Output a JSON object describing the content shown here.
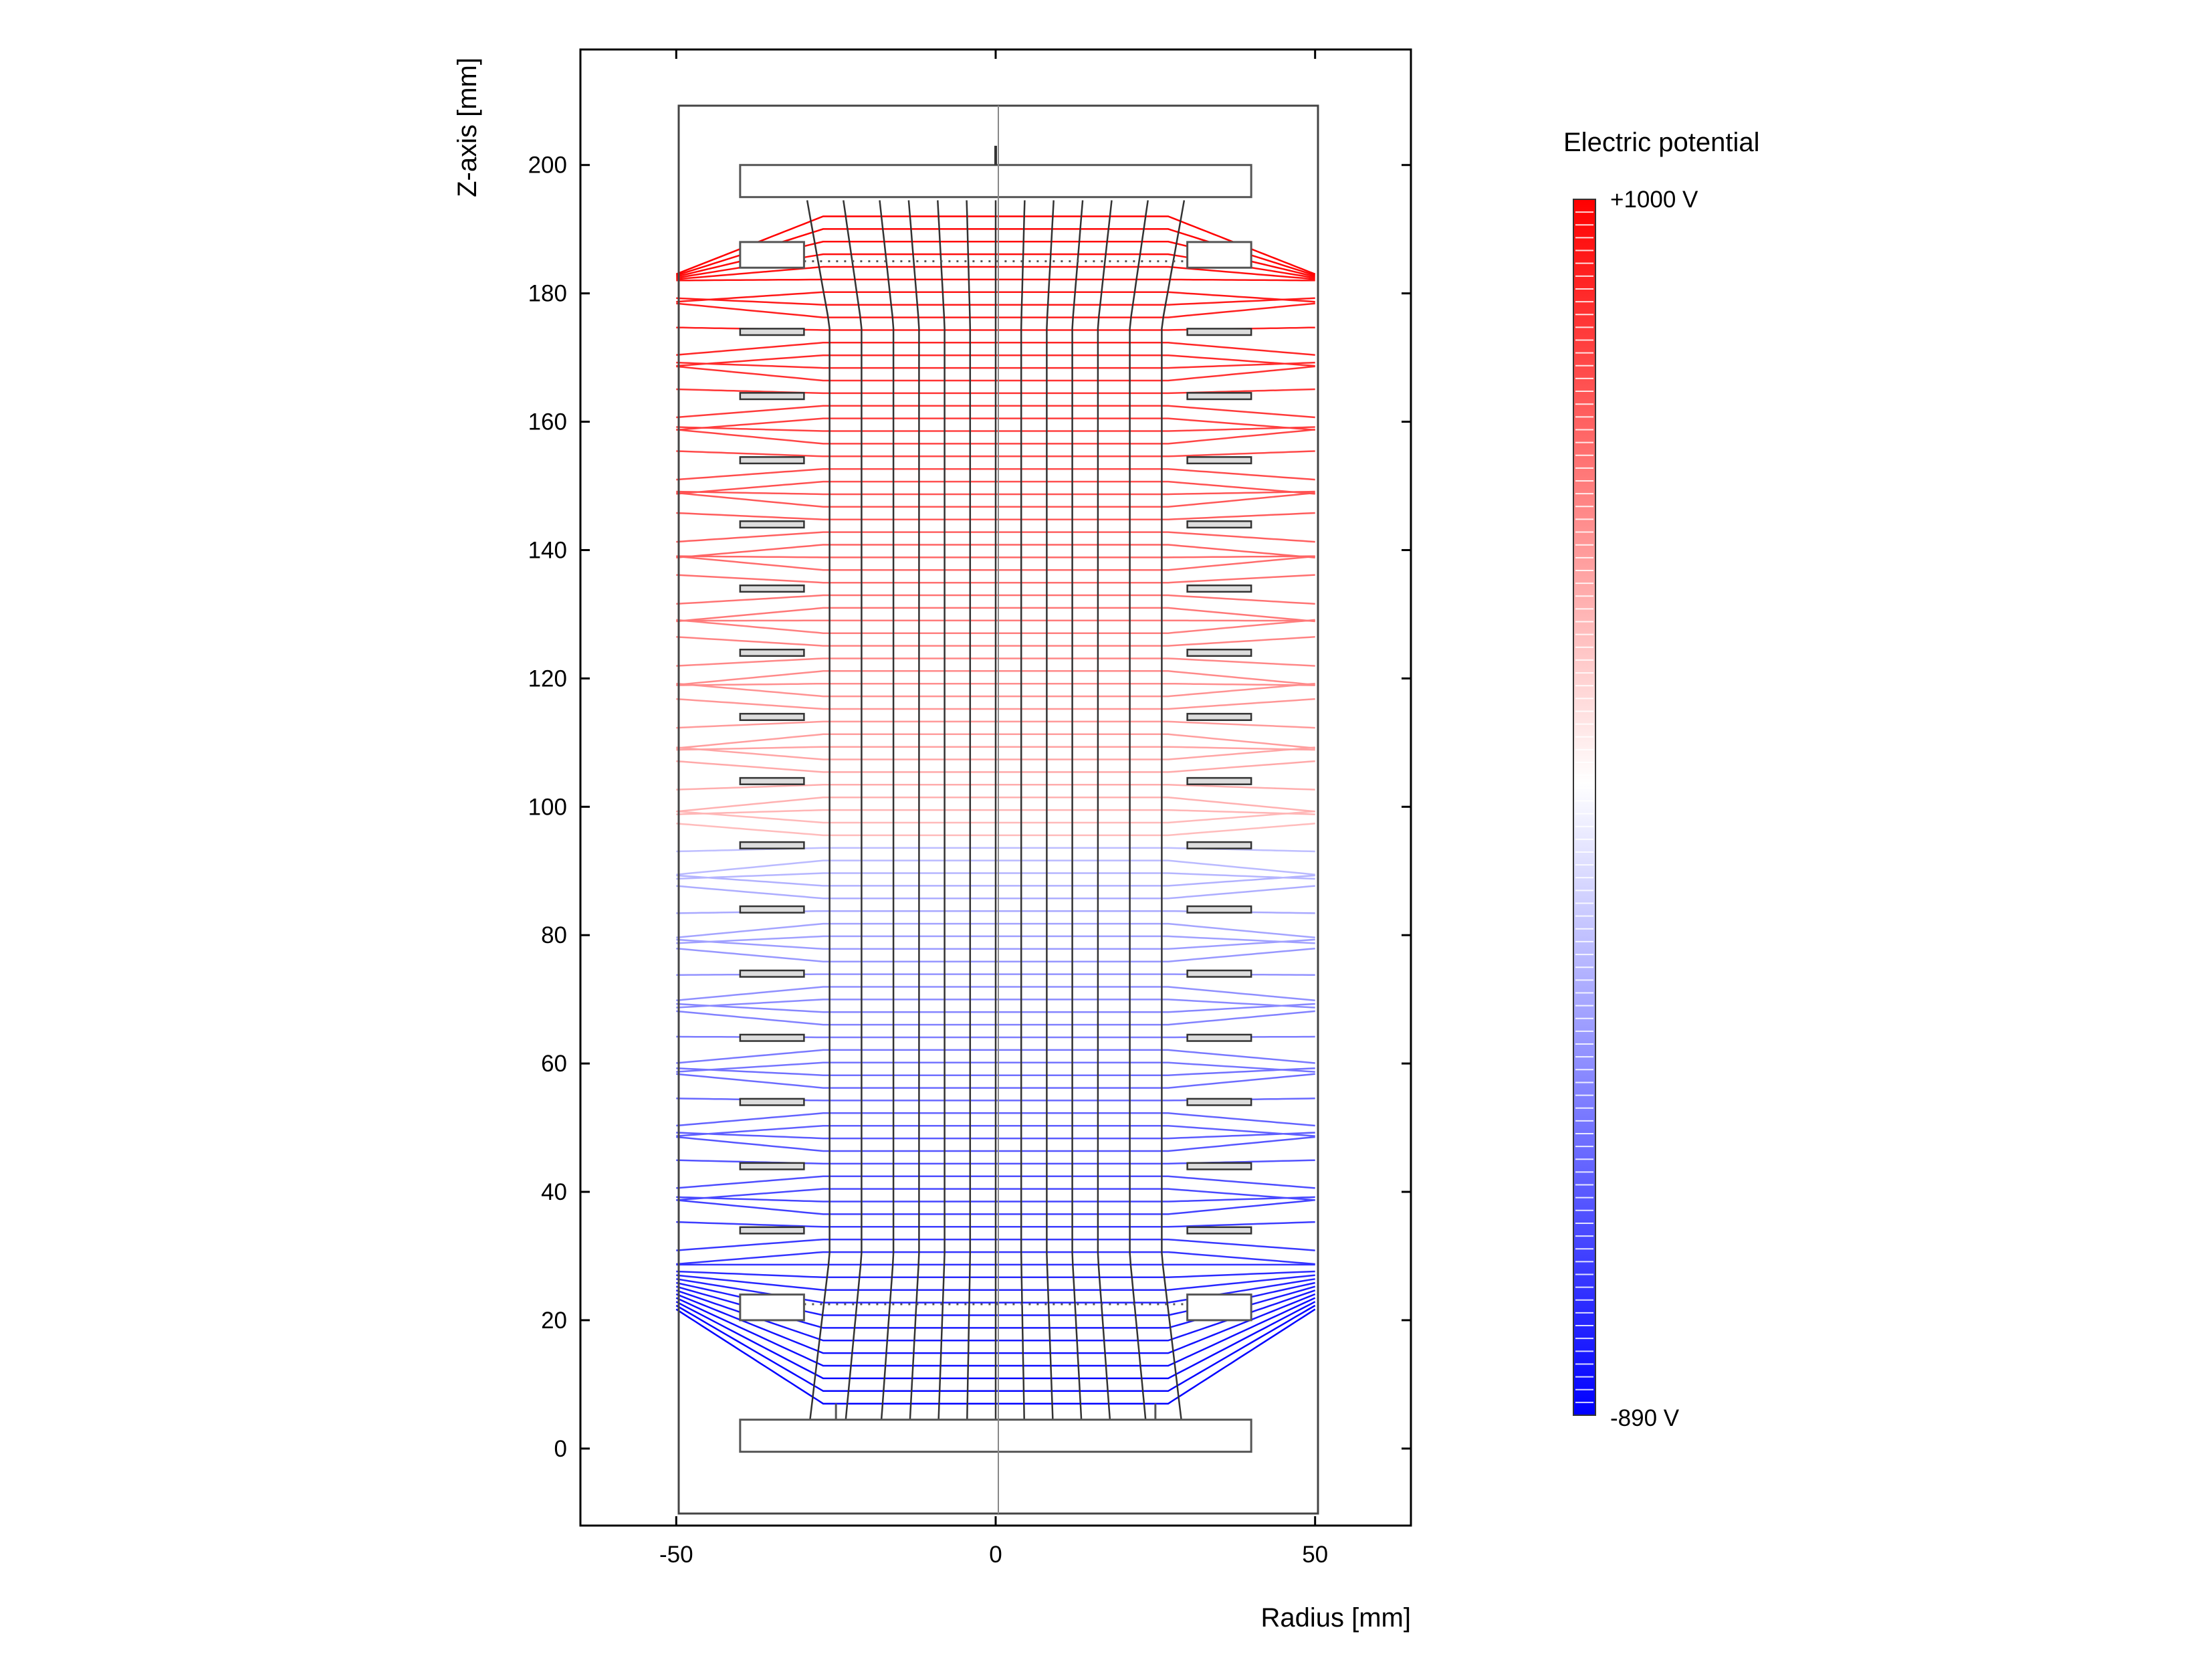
{
  "chart_data": {
    "type": "contour",
    "title": "",
    "xlabel": "Radius [mm]",
    "ylabel": "Z-axis [mm]",
    "xlim": [
      -65,
      65
    ],
    "ylim": [
      -12,
      218
    ],
    "xticks": [
      -50,
      0,
      50
    ],
    "yticks": [
      0,
      20,
      40,
      60,
      80,
      100,
      120,
      140,
      160,
      180,
      200
    ],
    "x_tick_labels": [
      "-50",
      "0",
      "50"
    ],
    "y_tick_labels": [
      "0",
      "20",
      "40",
      "60",
      "80",
      "100",
      "120",
      "140",
      "160",
      "180",
      "200"
    ],
    "grid": false,
    "colorbar": {
      "title": "Electric potential",
      "max_label": "+1000 V",
      "min_label": "-890 V",
      "vmax": 1000,
      "vmin": -890,
      "colormap": [
        "#0000ff",
        "#ffffff",
        "#ff0000"
      ]
    },
    "domain_box": {
      "r": [
        -50,
        50
      ],
      "z": [
        -10,
        210
      ]
    },
    "electrodes": {
      "top_plate": {
        "r": [
          -40,
          40
        ],
        "z": [
          195,
          200
        ],
        "potential": 1000
      },
      "bottom_plate": {
        "r": [
          -40,
          40
        ],
        "z": [
          -0.5,
          4.5
        ],
        "potential": -890
      },
      "top_rings": {
        "r_inner": 30,
        "r_outer": 40,
        "z": [
          184,
          188
        ]
      },
      "bottom_rings": {
        "r_inner": 30,
        "r_outer": 40,
        "z": [
          20,
          24
        ]
      },
      "field_shaping_rings_z": [
        34,
        44,
        54,
        64,
        74,
        84,
        94,
        104,
        114,
        124,
        134,
        144,
        154,
        164,
        174
      ]
    },
    "contour_levels_count": 95,
    "field_line_radii": [
      -26,
      -21,
      -16,
      -12,
      -8,
      -4,
      0,
      4,
      8,
      12,
      16,
      21,
      26
    ],
    "colors": {
      "positive": "#ff0000",
      "negative": "#0000ff",
      "field_line": "#333333",
      "electrode": "#555555"
    }
  }
}
